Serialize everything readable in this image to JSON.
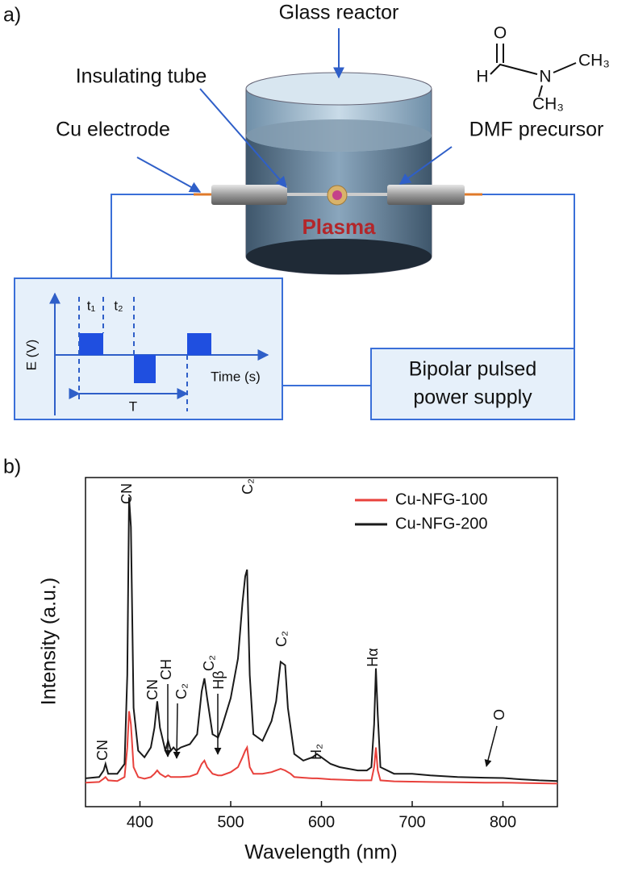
{
  "panel_a": {
    "label": "a)",
    "glass_reactor": "Glass reactor",
    "insulating_tube": "Insulating tube",
    "cu_electrode": "Cu electrode",
    "dmf_precursor": "DMF precursor",
    "plasma": "Plasma",
    "power_supply": [
      "Bipolar pulsed",
      "power supply"
    ],
    "inset": {
      "y_label": "E (V)",
      "x_label": "Time (s)",
      "t1": "t₁",
      "t2": "t₂",
      "period": "T"
    },
    "molecule": {
      "o": "O",
      "h": "H",
      "n": "N",
      "ch3_top": "CH₃",
      "ch3_bottom": "CH₃"
    }
  },
  "chart_data": {
    "type": "line",
    "panel_label": "b)",
    "x_label": "Wavelength (nm)",
    "y_label": "Intensity (a.u.)",
    "xlim": [
      340,
      860
    ],
    "xticks": [
      400,
      500,
      600,
      700,
      800
    ],
    "ylim": [
      0,
      100
    ],
    "legend": "top-right",
    "x": [
      340,
      355,
      360,
      362,
      365,
      375,
      383,
      386,
      388,
      390,
      393,
      398,
      405,
      412,
      416,
      419,
      422,
      428,
      431,
      434,
      437,
      440,
      445,
      455,
      463,
      468,
      471,
      474,
      480,
      486,
      490,
      500,
      508,
      513,
      516,
      518,
      521,
      525,
      535,
      545,
      550,
      555,
      560,
      563,
      566,
      570,
      580,
      590,
      595,
      600,
      610,
      620,
      640,
      650,
      655,
      658,
      660,
      662,
      665,
      680,
      700,
      720,
      750,
      780,
      800,
      820,
      840,
      860
    ],
    "series": [
      {
        "name": "Cu-NFG-100",
        "color": "#e8413c",
        "values": [
          7.3,
          7.5,
          8.5,
          9,
          8,
          7.8,
          9,
          18,
          29,
          25,
          12,
          9,
          8.5,
          9,
          10,
          11,
          10,
          9,
          9.5,
          9,
          9,
          9,
          9,
          9.2,
          10,
          13,
          14,
          12,
          10,
          9.5,
          9.5,
          10.5,
          12,
          15,
          17,
          18,
          12,
          10,
          10,
          10.5,
          11,
          11.5,
          11,
          10.5,
          10,
          9,
          8.8,
          8.6,
          8.6,
          8.5,
          8.3,
          8.2,
          8,
          8,
          8,
          12,
          18,
          11,
          8,
          7.7,
          7.6,
          7.5,
          7.4,
          7.3,
          7.3,
          7.2,
          7.1,
          7
        ]
      },
      {
        "name": "Cu-NFG-200",
        "color": "#1a1a1a",
        "values": [
          8.6,
          9,
          11,
          13,
          10,
          10,
          13,
          40,
          94,
          85,
          30,
          17,
          15,
          18,
          24,
          32,
          24,
          17,
          20,
          17,
          18,
          17,
          18,
          19,
          22,
          35,
          39,
          33,
          22,
          21,
          24,
          33,
          45,
          62,
          70,
          72,
          40,
          22,
          20,
          26,
          32,
          44,
          43,
          30,
          24,
          16,
          14,
          15,
          16,
          15,
          13,
          12,
          11,
          11,
          12,
          25,
          42,
          28,
          12,
          10,
          10,
          9.5,
          9,
          8.8,
          8.7,
          8.3,
          8,
          7.8
        ]
      }
    ],
    "annotations": [
      "CN",
      "CN",
      "CN",
      "CH",
      "C₂",
      "C₂",
      "Hβ",
      "C₂",
      "C₂",
      "H₂",
      "Hα",
      "O"
    ]
  }
}
